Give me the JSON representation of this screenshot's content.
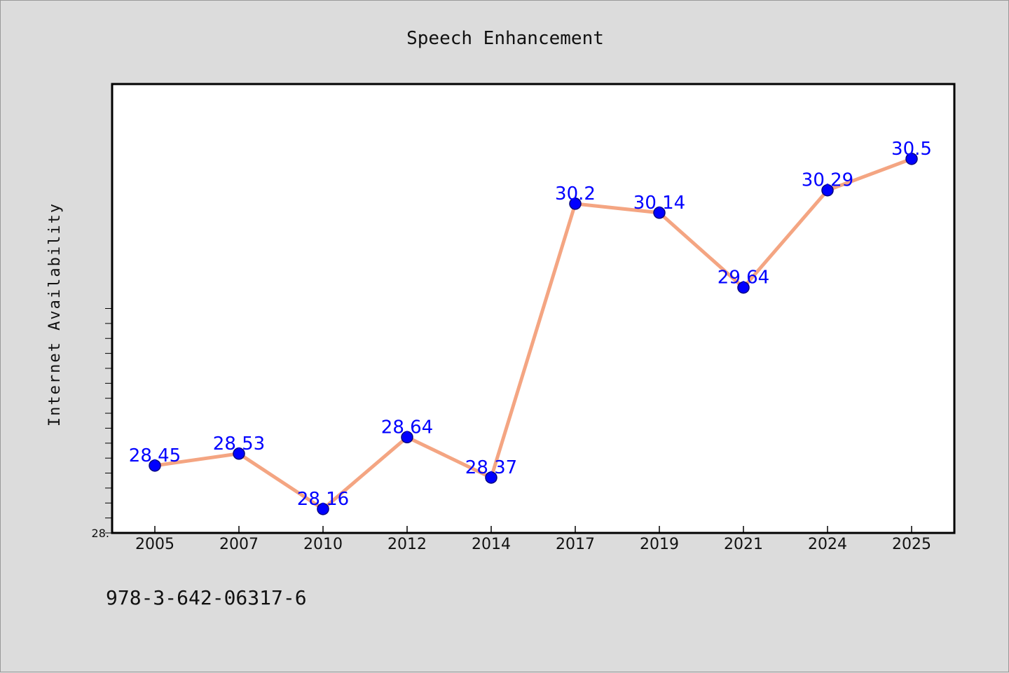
{
  "chart_data": {
    "type": "line",
    "title": "Speech Enhancement",
    "xlabel": "",
    "ylabel": "Internet Availability",
    "categories": [
      "2005",
      "2007",
      "2010",
      "2012",
      "2014",
      "2017",
      "2019",
      "2021",
      "2024",
      "2025"
    ],
    "series": [
      {
        "values": [
          28.45,
          28.53,
          28.16,
          28.64,
          28.37,
          30.2,
          30.14,
          29.64,
          30.29,
          30.5
        ]
      }
    ],
    "data_labels": [
      "28.45",
      "28.53",
      "28.16",
      "28.64",
      "28.37",
      "30.2",
      "30.14",
      "29.64",
      "30.29",
      "30.5"
    ],
    "ylim": [
      28.0,
      31.0
    ],
    "y_tick_labels": [
      "28."
    ],
    "grid": false,
    "legend": "none",
    "colors": {
      "line": "#f4a582",
      "marker": "#0000ff",
      "marker_edge": "#000080",
      "label": "#0000ff",
      "plot_background": "#ffffff",
      "page_background": "#dcdcdc"
    }
  },
  "footer": {
    "isbn": "978-3-642-06317-6"
  }
}
